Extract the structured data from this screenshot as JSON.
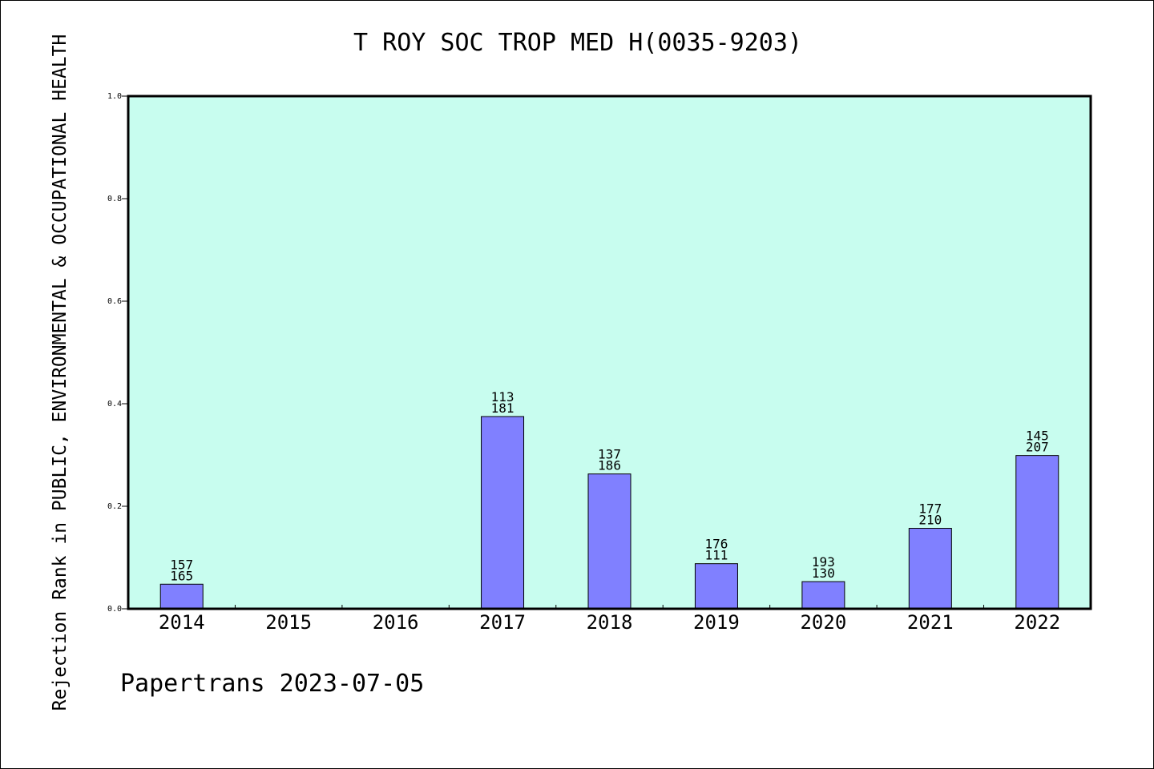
{
  "chart_data": {
    "type": "bar",
    "title": "T ROY SOC TROP MED H(0035-9203)",
    "xlabel": "",
    "ylabel": "Rejection Rank in PUBLIC, ENVIRONMENTAL & OCCUPATIONAL HEALTH",
    "categories": [
      "2014",
      "2015",
      "2016",
      "2017",
      "2018",
      "2019",
      "2020",
      "2021",
      "2022"
    ],
    "values": [
      0.048,
      0,
      0,
      0.375,
      0.263,
      0.088,
      0.053,
      0.157,
      0.299
    ],
    "data_labels": [
      [
        "157",
        "165"
      ],
      null,
      null,
      [
        "113",
        "181"
      ],
      [
        "137",
        "186"
      ],
      [
        "176",
        "111"
      ],
      [
        "193",
        "130"
      ],
      [
        "177",
        "210"
      ],
      [
        "145",
        "207"
      ]
    ],
    "ylim": [
      0,
      1.0
    ],
    "yticks": [
      "0.0",
      "0.2",
      "0.4",
      "0.6",
      "0.8",
      "1.0"
    ],
    "grid": false,
    "colors": {
      "plot_background": "#c8fdef",
      "bar_fill": "#8080ff",
      "bar_stroke": "#000000"
    }
  },
  "footer": "Papertrans 2023-07-05"
}
